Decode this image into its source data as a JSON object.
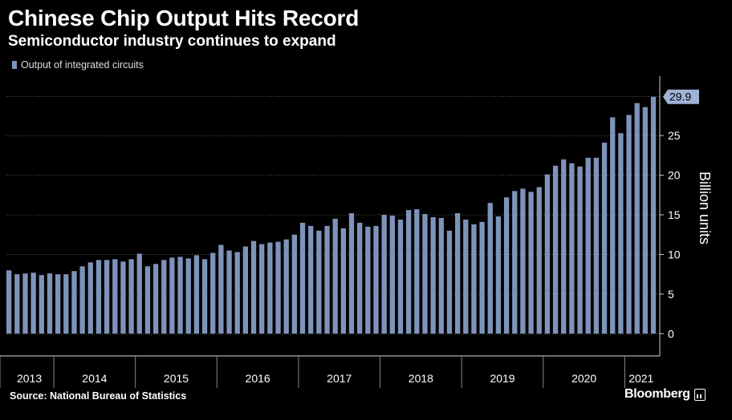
{
  "title": "Chinese Chip Output Hits Record",
  "subtitle": "Semiconductor industry continues to expand",
  "legend": {
    "label": "Output of integrated circuits"
  },
  "source": "Source: National Bureau of Statistics",
  "brand": "Bloomberg",
  "colors": {
    "bar": "#7e93ba",
    "background": "#000000",
    "text": "#ffffff",
    "grid": "#8a8a8a"
  },
  "chart_data": {
    "type": "bar",
    "ylabel": "Billion units",
    "ylim": [
      -2.8,
      32.5
    ],
    "yticks": [
      0,
      5,
      10,
      15,
      20,
      25
    ],
    "grid": "dotted horizontal",
    "axis_position": "right",
    "year_labels": [
      "2013",
      "2014",
      "2015",
      "2016",
      "2017",
      "2018",
      "2019",
      "2020",
      "2021"
    ],
    "year_start_index": [
      0,
      6,
      16,
      26,
      36,
      46,
      56,
      66,
      76
    ],
    "last_value_label": "29.9",
    "series": [
      {
        "name": "Output of integrated circuits",
        "values": [
          8.0,
          7.5,
          7.6,
          7.7,
          7.4,
          7.6,
          7.5,
          7.5,
          7.9,
          8.5,
          9.0,
          9.3,
          9.3,
          9.4,
          9.1,
          9.4,
          10.1,
          8.5,
          8.8,
          9.3,
          9.6,
          9.7,
          9.5,
          9.9,
          9.4,
          10.2,
          11.2,
          10.5,
          10.3,
          11.0,
          11.7,
          11.3,
          11.5,
          11.6,
          11.9,
          12.5,
          14.0,
          13.6,
          13.0,
          13.6,
          14.5,
          13.3,
          15.2,
          14.0,
          13.5,
          13.6,
          15.0,
          14.9,
          14.4,
          15.6,
          15.7,
          15.1,
          14.7,
          14.6,
          13.0,
          15.2,
          14.4,
          13.8,
          14.1,
          16.5,
          14.8,
          17.2,
          18.0,
          18.3,
          17.9,
          18.5,
          20.1,
          21.2,
          22.0,
          21.5,
          21.1,
          22.2,
          22.2,
          24.1,
          27.3,
          25.3,
          27.6,
          29.1,
          28.6,
          29.9
        ]
      }
    ]
  }
}
